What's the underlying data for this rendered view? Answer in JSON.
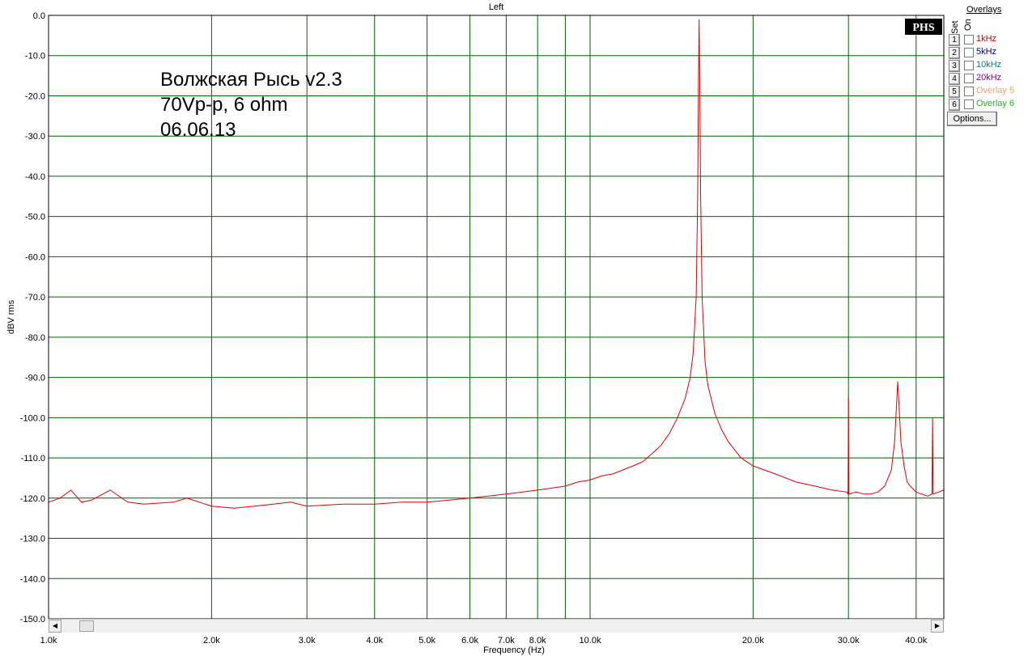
{
  "chart_data": {
    "type": "line",
    "title": "Left",
    "xlabel": "Frequency (Hz)",
    "ylabel": "dBV rms",
    "xscale": "log",
    "xlim": [
      1000,
      45000
    ],
    "ylim": [
      -150,
      0
    ],
    "grid": true,
    "x_ticks": [
      1000,
      2000,
      3000,
      4000,
      5000,
      6000,
      7000,
      8000,
      10000,
      20000,
      30000,
      40000
    ],
    "x_tick_labels": [
      "1.0k",
      "2.0k",
      "3.0k",
      "4.0k",
      "5.0k",
      "6.0k",
      "7.0k",
      "8.0k",
      "10.0k",
      "20.0k",
      "30.0k",
      "40.0k"
    ],
    "x_gridlines": [
      1000,
      2000,
      3000,
      4000,
      5000,
      6000,
      7000,
      8000,
      9000,
      10000,
      20000,
      30000,
      40000
    ],
    "y_ticks": [
      0,
      -10,
      -20,
      -30,
      -40,
      -50,
      -60,
      -70,
      -80,
      -90,
      -100,
      -110,
      -120,
      -130,
      -140,
      -150
    ],
    "y_tick_labels": [
      "0.0",
      "-10.0",
      "-20.0",
      "-30.0",
      "-40.0",
      "-50.0",
      "-60.0",
      "-70.0",
      "-80.0",
      "-90.0",
      "-100.0",
      "-110.0",
      "-120.0",
      "-130.0",
      "-140.0",
      "-150.0"
    ],
    "annotation": [
      "Волжская Рысь v2.3",
      "70Vp-p, 6 ohm",
      "06.06.13"
    ],
    "series": [
      {
        "color": "#dd0000",
        "points": [
          [
            1000,
            -121
          ],
          [
            1050,
            -120
          ],
          [
            1100,
            -118
          ],
          [
            1150,
            -121
          ],
          [
            1200,
            -120.5
          ],
          [
            1300,
            -118
          ],
          [
            1400,
            -121
          ],
          [
            1500,
            -121.5
          ],
          [
            1700,
            -121
          ],
          [
            1800,
            -120
          ],
          [
            2000,
            -122
          ],
          [
            2200,
            -122.5
          ],
          [
            2400,
            -122
          ],
          [
            2600,
            -121.5
          ],
          [
            2800,
            -121
          ],
          [
            3000,
            -122
          ],
          [
            3500,
            -121.5
          ],
          [
            4000,
            -121.5
          ],
          [
            4500,
            -121
          ],
          [
            5000,
            -121
          ],
          [
            5500,
            -120.5
          ],
          [
            6000,
            -120
          ],
          [
            6500,
            -119.5
          ],
          [
            7000,
            -119
          ],
          [
            7500,
            -118.5
          ],
          [
            8000,
            -118
          ],
          [
            8500,
            -117.5
          ],
          [
            9000,
            -117
          ],
          [
            9500,
            -116
          ],
          [
            10000,
            -115.5
          ],
          [
            10500,
            -114.5
          ],
          [
            11000,
            -114
          ],
          [
            11500,
            -113
          ],
          [
            12000,
            -112
          ],
          [
            12500,
            -111
          ],
          [
            13000,
            -109
          ],
          [
            13500,
            -107
          ],
          [
            14000,
            -104
          ],
          [
            14500,
            -100
          ],
          [
            15000,
            -95
          ],
          [
            15300,
            -90
          ],
          [
            15500,
            -84
          ],
          [
            15700,
            -70
          ],
          [
            15800,
            -45
          ],
          [
            15850,
            -20
          ],
          [
            15900,
            -1
          ],
          [
            15950,
            -20
          ],
          [
            16000,
            -45
          ],
          [
            16100,
            -70
          ],
          [
            16300,
            -86
          ],
          [
            16500,
            -92
          ],
          [
            17000,
            -99
          ],
          [
            17500,
            -103
          ],
          [
            18000,
            -106
          ],
          [
            19000,
            -110
          ],
          [
            20000,
            -112
          ],
          [
            22000,
            -114
          ],
          [
            24000,
            -116
          ],
          [
            26000,
            -117
          ],
          [
            28000,
            -118
          ],
          [
            29800,
            -118.5
          ],
          [
            29950,
            -119
          ],
          [
            30000,
            -95
          ],
          [
            30050,
            -119
          ],
          [
            31000,
            -118.5
          ],
          [
            32000,
            -119
          ],
          [
            33000,
            -119
          ],
          [
            34000,
            -118.5
          ],
          [
            35000,
            -117
          ],
          [
            36000,
            -113
          ],
          [
            36500,
            -106
          ],
          [
            37000,
            -91
          ],
          [
            37500,
            -106
          ],
          [
            38000,
            -112
          ],
          [
            38500,
            -116
          ],
          [
            39000,
            -117
          ],
          [
            40000,
            -118.5
          ],
          [
            41000,
            -119
          ],
          [
            42000,
            -119.5
          ],
          [
            42800,
            -119
          ],
          [
            42900,
            -100
          ],
          [
            43000,
            -119
          ],
          [
            44000,
            -118.5
          ],
          [
            45000,
            -118
          ]
        ]
      }
    ]
  },
  "overlays": {
    "title": "Overlays",
    "set_label": "Set",
    "on_label": "On",
    "items": [
      {
        "num": "1",
        "label": "1kHz",
        "color": "#d00000"
      },
      {
        "num": "2",
        "label": "5kHz",
        "color": "#000090"
      },
      {
        "num": "3",
        "label": "10kHz",
        "color": "#008080"
      },
      {
        "num": "4",
        "label": "20kHz",
        "color": "#9000a0"
      },
      {
        "num": "5",
        "label": "Overlay 5",
        "color": "#f0a060"
      },
      {
        "num": "6",
        "label": "Overlay 6",
        "color": "#20b020"
      }
    ],
    "options_label": "Options..."
  },
  "logo": "PHS",
  "colors": {
    "grid": "#006400",
    "trace": "#dd0000"
  }
}
